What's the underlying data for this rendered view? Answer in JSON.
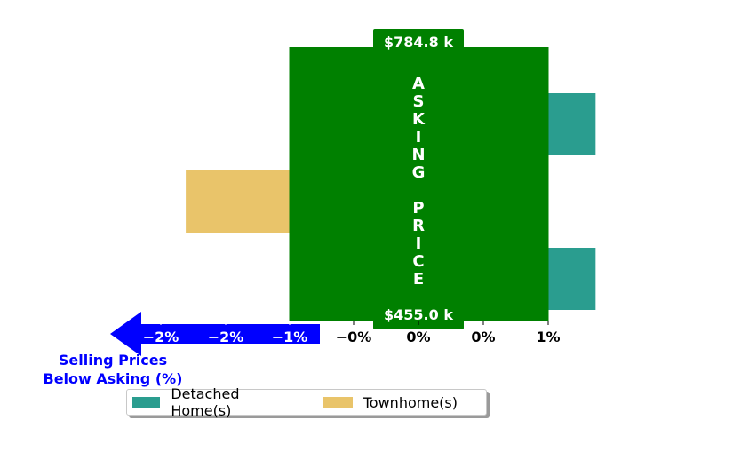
{
  "chart_data": {
    "type": "bar",
    "orientation": "horizontal",
    "x_tick_labels": [
      "−2%",
      "−2%",
      "−1%",
      "−0%",
      "0%",
      "0%",
      "1%"
    ],
    "xlim": [
      -2.2,
      1.4
    ],
    "rows": [
      {
        "series": "Detached Home(s)",
        "value": 1.37,
        "color": "#2a9d8f"
      },
      {
        "series": "Townhome(s)",
        "value": -1.8,
        "color": "#e9c46a"
      },
      {
        "series": "Detached Home(s)",
        "value": 1.37,
        "color": "#2a9d8f"
      }
    ],
    "asking_price_panel": {
      "label": "ASKING PRICE",
      "top_label": "$784.8 k",
      "bottom_label": "$455.0 k",
      "x_range": [
        -1.0,
        1.0
      ],
      "color": "#008000"
    },
    "arrow": {
      "label_line1": "Selling Prices",
      "label_line2": "Below Asking (%)",
      "color": "#0000ff"
    },
    "legend": [
      {
        "label": "Detached Home(s)",
        "color": "#2a9d8f"
      },
      {
        "label": "Townhome(s)",
        "color": "#e9c46a"
      }
    ],
    "legend_placement": "bottom-center",
    "grid": false
  }
}
